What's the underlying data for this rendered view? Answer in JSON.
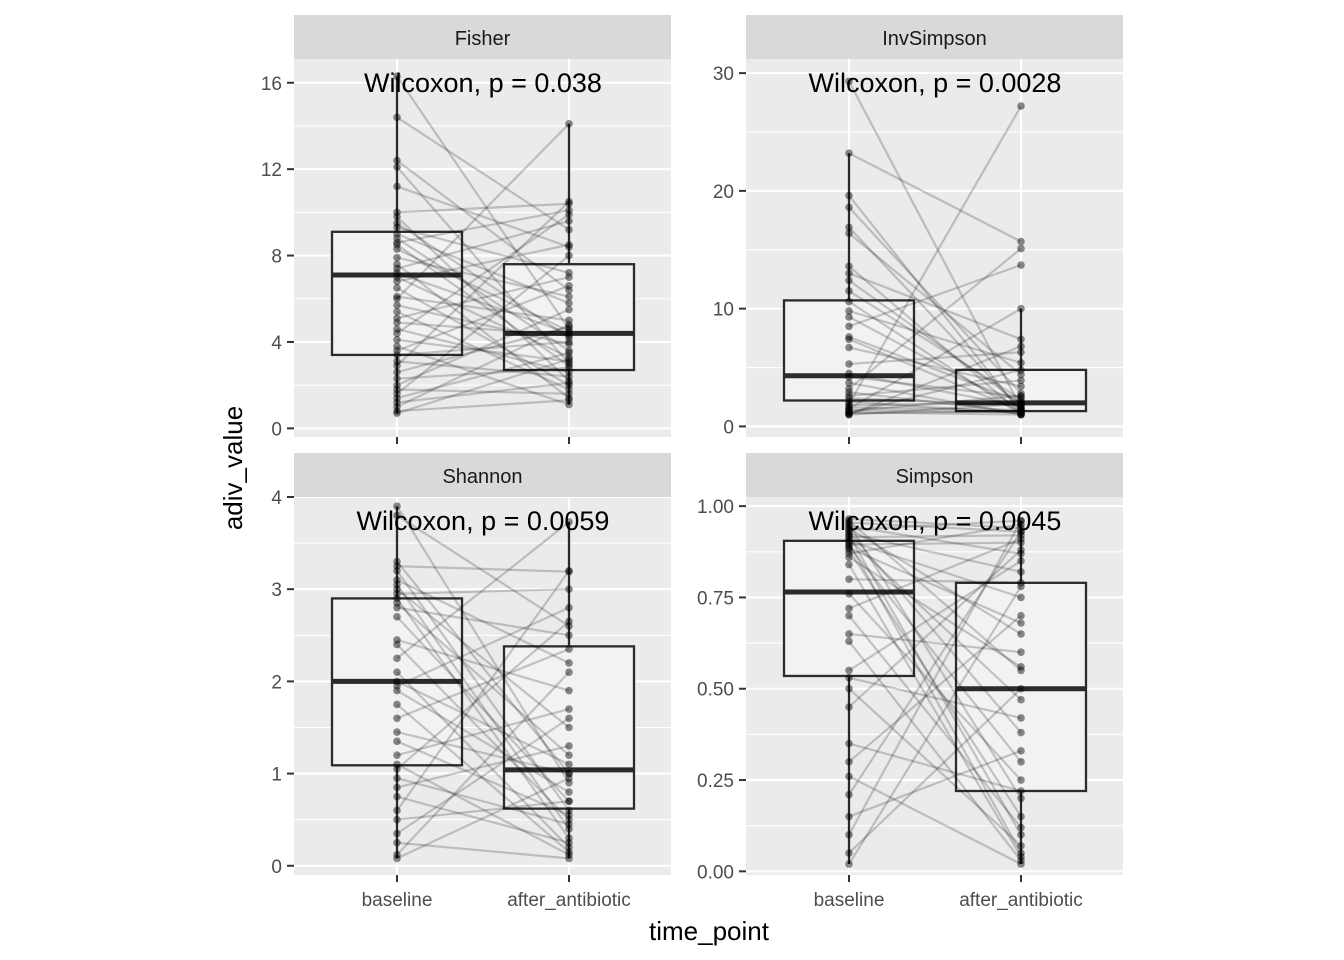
{
  "chart_data": {
    "type": "boxplot",
    "xlabel": "time_point",
    "ylabel": "adiv_value",
    "categories": [
      "baseline",
      "after_antibiotic"
    ],
    "panels": [
      {
        "name": "Fisher",
        "stat_label": "Wilcoxon, p = 0.038",
        "ylim": [
          -0.4,
          17.1
        ],
        "yticks": [
          0,
          4,
          8,
          12,
          16
        ],
        "ytick_labels": [
          "0",
          "4",
          "8",
          "12",
          "16"
        ],
        "boxes": [
          {
            "category": "baseline",
            "whisker_low": 0.7,
            "q1": 3.4,
            "median": 7.1,
            "q3": 9.1,
            "whisker_high": 16.3
          },
          {
            "category": "after_antibiotic",
            "whisker_low": 1.1,
            "q1": 2.7,
            "median": 4.4,
            "q3": 7.6,
            "whisker_high": 14.1
          }
        ],
        "pairs": [
          [
            16.3,
            4.6
          ],
          [
            14.4,
            9.2
          ],
          [
            12.4,
            6.4
          ],
          [
            12.1,
            3.0
          ],
          [
            11.2,
            8.4
          ],
          [
            10.0,
            10.4
          ],
          [
            9.8,
            2.2
          ],
          [
            9.5,
            4.2
          ],
          [
            9.3,
            7.2
          ],
          [
            9.0,
            5.8
          ],
          [
            8.8,
            3.6
          ],
          [
            8.6,
            10.1
          ],
          [
            8.5,
            2.9
          ],
          [
            8.3,
            4.5
          ],
          [
            7.9,
            6.1
          ],
          [
            7.6,
            1.4
          ],
          [
            7.4,
            9.6
          ],
          [
            7.2,
            4.4
          ],
          [
            7.0,
            3.3
          ],
          [
            6.8,
            8.5
          ],
          [
            6.5,
            2.0
          ],
          [
            6.1,
            5.0
          ],
          [
            6.0,
            14.1
          ],
          [
            5.7,
            3.9
          ],
          [
            5.4,
            1.8
          ],
          [
            5.1,
            7.0
          ],
          [
            4.9,
            4.3
          ],
          [
            4.6,
            2.6
          ],
          [
            4.4,
            9.9
          ],
          [
            4.1,
            3.1
          ],
          [
            3.8,
            1.1
          ],
          [
            3.6,
            6.6
          ],
          [
            3.4,
            4.0
          ],
          [
            3.1,
            2.4
          ],
          [
            2.9,
            10.5
          ],
          [
            2.6,
            4.7
          ],
          [
            2.3,
            2.8
          ],
          [
            2.0,
            5.5
          ],
          [
            1.8,
            1.6
          ],
          [
            1.6,
            8.0
          ],
          [
            1.4,
            3.5
          ],
          [
            1.2,
            2.1
          ],
          [
            1.0,
            4.8
          ],
          [
            0.8,
            1.3
          ],
          [
            0.7,
            3.2
          ]
        ]
      },
      {
        "name": "InvSimpson",
        "stat_label": "Wilcoxon, p = 0.0028",
        "ylim": [
          -0.9,
          31.2
        ],
        "yticks": [
          0,
          10,
          20,
          30
        ],
        "ytick_labels": [
          "0",
          "10",
          "20",
          "30"
        ],
        "boxes": [
          {
            "category": "baseline",
            "whisker_low": 1.0,
            "q1": 2.2,
            "median": 4.3,
            "q3": 10.7,
            "whisker_high": 23.2
          },
          {
            "category": "after_antibiotic",
            "whisker_low": 1.0,
            "q1": 1.3,
            "median": 2.0,
            "q3": 4.8,
            "whisker_high": 10.0
          }
        ],
        "pairs": [
          [
            29.3,
            1.6
          ],
          [
            23.2,
            15.7
          ],
          [
            19.6,
            1.2
          ],
          [
            18.6,
            2.8
          ],
          [
            16.9,
            1.4
          ],
          [
            16.4,
            4.4
          ],
          [
            13.6,
            1.1
          ],
          [
            13.0,
            7.4
          ],
          [
            12.4,
            1.9
          ],
          [
            11.5,
            2.3
          ],
          [
            10.6,
            1.0
          ],
          [
            9.8,
            5.4
          ],
          [
            9.3,
            1.5
          ],
          [
            8.5,
            13.7
          ],
          [
            7.6,
            2.1
          ],
          [
            7.4,
            1.3
          ],
          [
            6.7,
            3.4
          ],
          [
            5.3,
            6.3
          ],
          [
            4.5,
            1.7
          ],
          [
            4.2,
            2.5
          ],
          [
            3.7,
            1.0
          ],
          [
            3.2,
            15.1
          ],
          [
            2.9,
            1.2
          ],
          [
            2.6,
            3.9
          ],
          [
            2.4,
            1.8
          ],
          [
            2.1,
            1.1
          ],
          [
            1.9,
            27.2
          ],
          [
            1.8,
            2.0
          ],
          [
            1.6,
            1.4
          ],
          [
            1.5,
            10.0
          ],
          [
            1.4,
            1.2
          ],
          [
            1.3,
            2.6
          ],
          [
            1.2,
            1.0
          ],
          [
            1.1,
            4.8
          ],
          [
            1.1,
            1.3
          ],
          [
            1.0,
            6.8
          ],
          [
            1.0,
            1.9
          ]
        ]
      },
      {
        "name": "Shannon",
        "stat_label": "Wilcoxon, p = 0.0059",
        "ylim": [
          -0.1,
          4.0
        ],
        "yticks": [
          0,
          1,
          2,
          3,
          4
        ],
        "ytick_labels": [
          "0",
          "1",
          "2",
          "3",
          "4"
        ],
        "boxes": [
          {
            "category": "baseline",
            "whisker_low": 0.08,
            "q1": 1.09,
            "median": 2.0,
            "q3": 2.9,
            "whisker_high": 3.9
          },
          {
            "category": "after_antibiotic",
            "whisker_low": 0.08,
            "q1": 0.62,
            "median": 1.04,
            "q3": 2.38,
            "whisker_high": 3.73
          }
        ],
        "pairs": [
          [
            3.9,
            0.9
          ],
          [
            3.8,
            2.6
          ],
          [
            3.3,
            1.0
          ],
          [
            3.25,
            3.19
          ],
          [
            3.2,
            0.6
          ],
          [
            3.1,
            2.2
          ],
          [
            3.05,
            0.4
          ],
          [
            3.0,
            1.5
          ],
          [
            2.95,
            3.0
          ],
          [
            2.9,
            0.3
          ],
          [
            2.85,
            1.2
          ],
          [
            2.8,
            2.5
          ],
          [
            2.7,
            0.7
          ],
          [
            2.45,
            1.9
          ],
          [
            2.4,
            0.5
          ],
          [
            2.25,
            3.73
          ],
          [
            2.1,
            0.2
          ],
          [
            2.0,
            1.1
          ],
          [
            1.95,
            2.8
          ],
          [
            1.9,
            0.8
          ],
          [
            1.75,
            0.15
          ],
          [
            1.6,
            2.35
          ],
          [
            1.45,
            1.0
          ],
          [
            1.35,
            0.55
          ],
          [
            1.2,
            1.7
          ],
          [
            1.1,
            0.12
          ],
          [
            1.05,
            2.65
          ],
          [
            0.95,
            0.45
          ],
          [
            0.85,
            1.3
          ],
          [
            0.75,
            0.25
          ],
          [
            0.6,
            3.2
          ],
          [
            0.5,
            0.7
          ],
          [
            0.35,
            1.6
          ],
          [
            0.25,
            0.08
          ],
          [
            0.12,
            2.1
          ],
          [
            0.08,
            0.95
          ]
        ]
      },
      {
        "name": "Simpson",
        "stat_label": "Wilcoxon, p = 0.0045",
        "ylim": [
          -0.01,
          1.025
        ],
        "yticks": [
          0.0,
          0.25,
          0.5,
          0.75,
          1.0
        ],
        "ytick_labels": [
          "0.00",
          "0.25",
          "0.50",
          "0.75",
          "1.00"
        ],
        "boxes": [
          {
            "category": "baseline",
            "whisker_low": 0.02,
            "q1": 0.535,
            "median": 0.765,
            "q3": 0.905,
            "whisker_high": 0.965
          },
          {
            "category": "after_antibiotic",
            "whisker_low": 0.02,
            "q1": 0.22,
            "median": 0.5,
            "q3": 0.79,
            "whisker_high": 0.96
          }
        ],
        "pairs": [
          [
            0.965,
            0.94
          ],
          [
            0.96,
            0.55
          ],
          [
            0.955,
            0.93
          ],
          [
            0.95,
            0.2
          ],
          [
            0.945,
            0.87
          ],
          [
            0.94,
            0.65
          ],
          [
            0.935,
            0.96
          ],
          [
            0.93,
            0.38
          ],
          [
            0.925,
            0.82
          ],
          [
            0.92,
            0.1
          ],
          [
            0.915,
            0.92
          ],
          [
            0.91,
            0.47
          ],
          [
            0.905,
            0.75
          ],
          [
            0.9,
            0.05
          ],
          [
            0.895,
            0.9
          ],
          [
            0.89,
            0.3
          ],
          [
            0.885,
            0.68
          ],
          [
            0.88,
            0.15
          ],
          [
            0.87,
            0.95
          ],
          [
            0.86,
            0.56
          ],
          [
            0.84,
            0.04
          ],
          [
            0.8,
            0.79
          ],
          [
            0.76,
            0.25
          ],
          [
            0.72,
            0.91
          ],
          [
            0.7,
            0.12
          ],
          [
            0.65,
            0.6
          ],
          [
            0.63,
            0.03
          ],
          [
            0.55,
            0.85
          ],
          [
            0.53,
            0.42
          ],
          [
            0.5,
            0.07
          ],
          [
            0.45,
            0.88
          ],
          [
            0.35,
            0.22
          ],
          [
            0.3,
            0.7
          ],
          [
            0.26,
            0.02
          ],
          [
            0.21,
            0.93
          ],
          [
            0.15,
            0.33
          ],
          [
            0.1,
            0.96
          ],
          [
            0.05,
            0.5
          ],
          [
            0.02,
            0.78
          ]
        ]
      }
    ]
  }
}
